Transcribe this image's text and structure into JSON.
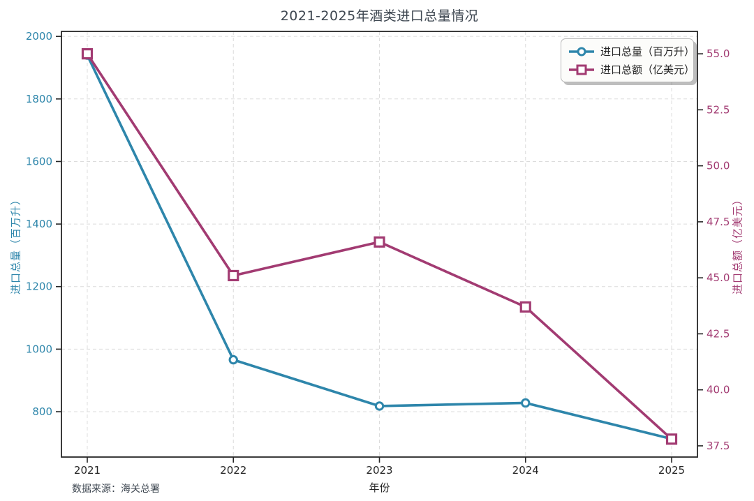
{
  "title": "2021-2025年酒类进口总量情况",
  "xlabel": "年份",
  "ylabel_left": "进口总量（百万升）",
  "ylabel_right": "进口总额（亿美元）",
  "source_note": "数据来源：海关总署",
  "legend": {
    "items": [
      {
        "label": "进口总量（百万升）",
        "marker": "circle-on-line",
        "color": "#2E86AB"
      },
      {
        "label": "进口总额（亿美元）",
        "marker": "square-on-line",
        "color": "#A23B72"
      }
    ]
  },
  "chart_data": {
    "type": "line",
    "title": "2021-2025年酒类进口总量情况",
    "xlabel": "年份",
    "ylabel_left": "进口总量（百万升）",
    "ylabel_right": "进口总额（亿美元）",
    "categories": [
      "2021",
      "2022",
      "2023",
      "2024",
      "2025"
    ],
    "series": [
      {
        "name": "进口总量（百万升）",
        "axis": "left",
        "marker": "circle",
        "color": "#2E86AB",
        "values": [
          1940,
          966,
          818,
          828,
          713
        ]
      },
      {
        "name": "进口总额（亿美元）",
        "axis": "right",
        "marker": "square",
        "color": "#A23B72",
        "values": [
          55.0,
          45.1,
          46.6,
          43.7,
          37.8
        ]
      }
    ],
    "left_ticks": [
      "2000",
      "1800",
      "1600",
      "1400",
      "1200",
      "1000",
      "800"
    ],
    "right_ticks": [
      "55.0",
      "52.5",
      "50.0",
      "47.5",
      "45.0",
      "42.5",
      "40.0",
      "37.5"
    ],
    "ylim_left": [
      655,
      2016
    ],
    "ylim_right": [
      37,
      56
    ],
    "grid": true,
    "grid_style": "dashed",
    "legend_position": "top-right",
    "source": "数据来源：海关总署",
    "colors": {
      "volume_line": "#2E86AB",
      "value_line": "#A23B72",
      "axis_frame": "#262626",
      "grid": "#dcdcdc",
      "title_text": "#3d4650",
      "x_tick_text": "#262626"
    }
  }
}
